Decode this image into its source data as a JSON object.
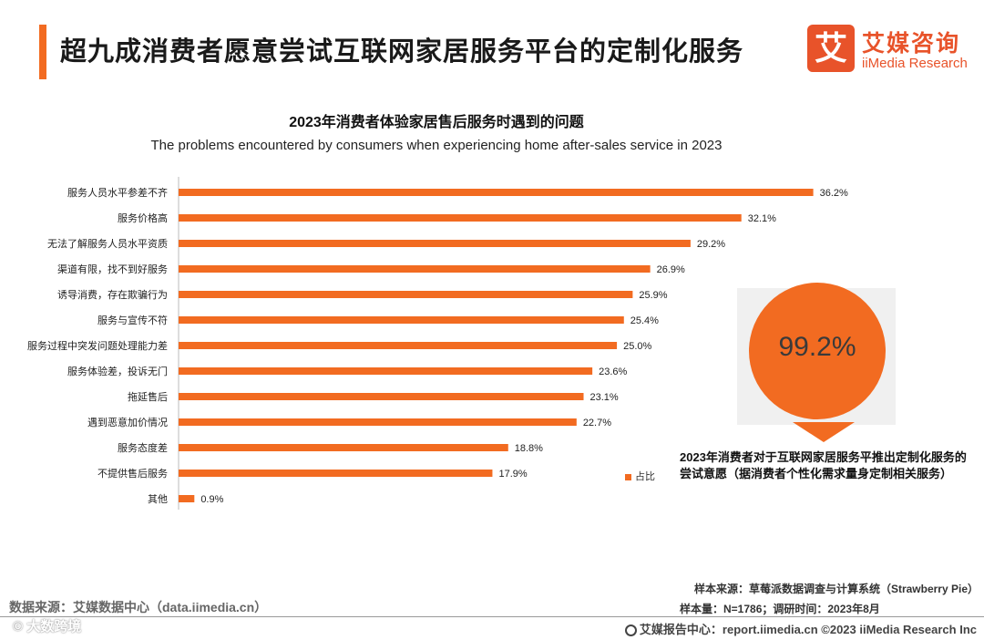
{
  "header": {
    "title": "超九成消费者愿意尝试互联网家居服务平台的定制化服务",
    "logo_mark": "艾",
    "logo_cn": "艾媒咨询",
    "logo_en": "iiMedia Research"
  },
  "chart_data": {
    "type": "bar",
    "orientation": "horizontal",
    "title": "2023年消费者体验家居售后服务时遇到的问题",
    "subtitle": "The problems encountered by consumers when experiencing home after-sales service in 2023",
    "categories": [
      "服务人员水平参差不齐",
      "服务价格高",
      "无法了解服务人员水平资质",
      "渠道有限，找不到好服务",
      "诱导消费，存在欺骗行为",
      "服务与宣传不符",
      "服务过程中突发问题处理能力差",
      "服务体验差，投诉无门",
      "拖延售后",
      "遇到恶意加价情况",
      "服务态度差",
      "不提供售后服务",
      "其他"
    ],
    "values": [
      36.2,
      32.1,
      29.2,
      26.9,
      25.9,
      25.4,
      25.0,
      23.6,
      23.1,
      22.7,
      18.8,
      17.9,
      0.9
    ],
    "value_labels": [
      "36.2%",
      "32.1%",
      "29.2%",
      "26.9%",
      "25.9%",
      "25.4%",
      "25.0%",
      "23.6%",
      "23.1%",
      "22.7%",
      "18.8%",
      "17.9%",
      "0.9%"
    ],
    "unit": "%",
    "xlim": [
      0,
      37
    ],
    "legend": [
      "占比"
    ],
    "color": "#f26b21"
  },
  "highlight": {
    "value": "99.2%",
    "caption": "2023年消费者对于互联网家居服务平推出定制化服务的尝试意愿（据消费者个性化需求量身定制相关服务）"
  },
  "footer": {
    "data_source": "数据来源：艾媒数据中心（data.iimedia.cn）",
    "watermark": "© 大数跨境",
    "sample_source": "样本来源：草莓派数据调查与计算系统（Strawberry Pie）",
    "sample_size": "样本量：N=1786；调研时间：2023年8月",
    "report_center": "艾媒报告中心：report.iimedia.cn  ©2023  iiMedia Research  Inc"
  },
  "colors": {
    "accent": "#f26b21",
    "brand": "#e8532a"
  }
}
